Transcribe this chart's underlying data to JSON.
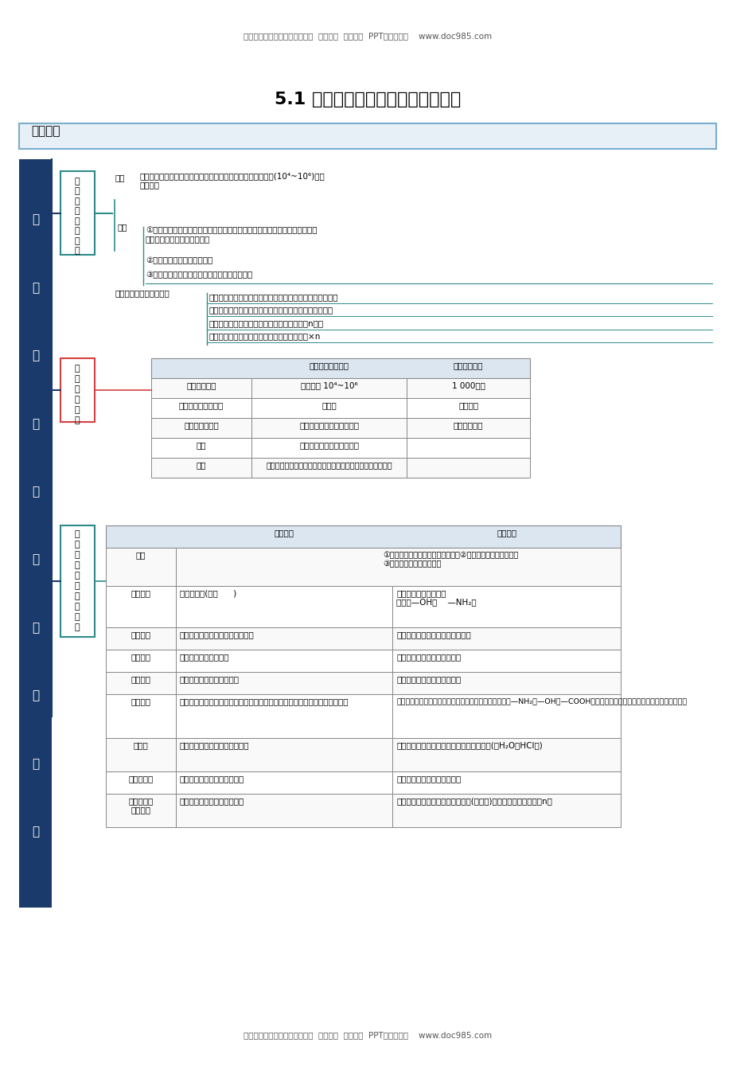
{
  "bg_color": "#ffffff",
  "header_text": "小学、初中、高中各种试卷真题  知识归纳  文案合同  PPT等免费下载    www.doc985.com",
  "footer_text": "小学、初中、高中各种试卷真题  知识归纳  文案合同  PPT等免费下载    www.doc985.com",
  "title": "5.1 合成高分子的基本方法（精讲）",
  "section_label": "思维导图",
  "left_vertical_text": "合\n成\n高\n分\n子\n的\n基\n本\n方\n法",
  "node_organic": "有机\n高分\n子化\n合物",
  "node_compare": "高低\n分子\n比较",
  "node_reaction": "加聚\n和缩\n聚反\n应的\n比较",
  "concept_label": "概念",
  "concept_text": "由许多小分子化合物通过共价键结合成的，相对分子质量很高(10⁴~10⁶)的一\n类化合物",
  "feature_label": "特点",
  "feature1": "①相对分子质量很大，由于高分子化合物都是混合物，无固定的熔、沸点，其\n相对分子质量只是一个平均值",
  "feature2": "②合成原料都是低分子化合物",
  "feature3": "③每个高分子都是由若干个重复结构单元组成的",
  "related_label": "高分子化合物有关的概念",
  "monomer": "单体：能够进行聚合反应形成高分子化合物的低分子化合物",
  "chain": "链节：高分子化合物中化学组成相同、可重复的最小单位",
  "degree": "聚合度：高分子链中含有链节的数目，通常用n表示",
  "avg_mass": "聚合物的平均相对分子质量＝链节的相对质量×n",
  "table1_headers": [
    "",
    "有机高分子化合物",
    "低分子有机物"
  ],
  "table1_rows": [
    [
      "相对分子质量",
      "一般高达 10⁴~10⁶",
      "1 000以下"
    ],
    [
      "相对分子质量的数值",
      "平均值",
      "明确数值"
    ],
    [
      "分子的基本结构",
      "由若干个重复结构单元组成",
      "单一分子结构"
    ],
    [
      "性质",
      "物理、化学性质有较大差别",
      ""
    ],
    [
      "联系",
      "有机高分子化合物是以低分子有机物为原料经聚合反应得到的",
      ""
    ]
  ],
  "table2_headers": [
    "",
    "加聚反应",
    "缩聚反应"
  ],
  "table2_row_labels": [
    "相同",
    "单体特征",
    "单体种类",
    "反应机理",
    "聚合方式",
    "反应特点",
    "生成物",
    "聚合物特征",
    "高分子相对\n分子质量"
  ],
  "same_text": "①单体是相对分子质量小的有机物；②生成物有高分子化合物；\n③单体可相同，也可不相同",
  "monomer_feature_add": "含不饱和键(如：      )",
  "monomer_feature_cond": "至少含两个特征官能团\n（如：—OH、    —NH₂）",
  "monomer_type_add": "含碳碳双键或碳碳三键的有机物等",
  "monomer_type_cond": "酸和胺、二元醇、二元酸、氨基酸",
  "mechanism_add": "反应发生在不饱和键上",
  "mechanism_cond": "反应发生在不同的官能团之间",
  "polymerize_add": "通过不饱和键上的加成连接",
  "polymerize_cond": "通过结合到低小分子而后连接",
  "reaction_feature_add": "单体中含有不饱和键是加聚反应的必要条件，打开不饱和键，相互连成长碳链",
  "reaction_feature_cond": "单体通常含有两个或两个以上能够相互作用的官能团，如—NH₂、—OH、—COOH；官能团与官能团间脱除一个小分子，逐步缩合",
  "product_add": "仅生成高聚物，没有副产物产生",
  "product_cond": "生成高聚物的同时，还有小分子副产物生成(如H₂O、HCl等)",
  "polymer_feature_add": "高聚物与单体具有相同的组成",
  "polymer_feature_cond": "高聚物和单体具有不同的组成",
  "mass_add": "是单体相对分子质量的整数倍",
  "mass_cond": "是单体的相对分子质量与脱去分子(小分子)的相对分子质量之差的n倍",
  "color_blue_dark": "#1a3a6b",
  "color_teal": "#2e8b8b",
  "color_pink": "#d44040",
  "color_section_bg": "#e8f0f7",
  "color_section_border": "#7aadcf",
  "color_table_header_bg": "#dce6f1",
  "color_table_border": "#888888",
  "color_left_box_bg": "#1a3a6b",
  "color_left_text": "#ffffff"
}
